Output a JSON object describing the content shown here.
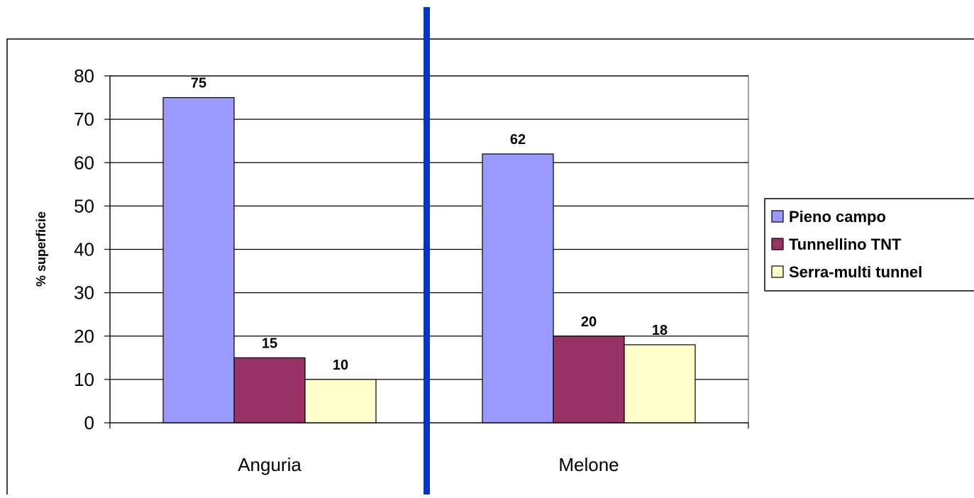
{
  "chart_data": {
    "type": "bar",
    "categories": [
      "Anguria",
      "Melone"
    ],
    "ylabel": "% superficie",
    "ylim": [
      0,
      80
    ],
    "yticks": [
      0,
      10,
      20,
      30,
      40,
      50,
      60,
      70,
      80
    ],
    "grid": true,
    "legend_position": "right",
    "series": [
      {
        "name": "Pieno campo",
        "color": "#9999FF",
        "values": [
          75,
          62
        ]
      },
      {
        "name": "Tunnellino TNT",
        "color": "#993366",
        "values": [
          15,
          20
        ]
      },
      {
        "name": "Serra-multi tunnel",
        "color": "#FFFFCC",
        "values": [
          10,
          18
        ]
      }
    ],
    "data_labels": true,
    "divider_color": "#0033CC"
  }
}
